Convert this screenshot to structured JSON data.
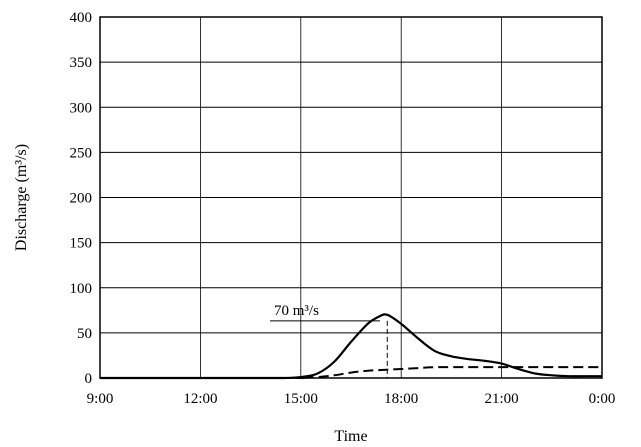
{
  "chart_data": {
    "type": "line",
    "xlabel": "Time",
    "ylabel": "Discharge (m³/s)",
    "x_ticks": [
      "9:00",
      "12:00",
      "15:00",
      "18:00",
      "21:00",
      "0:00"
    ],
    "y_ticks": [
      "0",
      "50",
      "100",
      "150",
      "200",
      "250",
      "300",
      "350",
      "400"
    ],
    "xlim": [
      "9:00",
      "0:00"
    ],
    "ylim": [
      0,
      400
    ],
    "grid": true,
    "series": [
      {
        "style": "solid",
        "x": [
          "9:00",
          "14:00",
          "14:30",
          "15:00",
          "15:30",
          "16:00",
          "16:30",
          "17:00",
          "17:20",
          "17:35",
          "18:00",
          "18:30",
          "19:00",
          "19:30",
          "20:00",
          "20:30",
          "21:00",
          "21:30",
          "22:00",
          "22:30",
          "23:00",
          "23:30",
          "0:00"
        ],
        "y": [
          0,
          0,
          0,
          1,
          5,
          18,
          40,
          60,
          68,
          70,
          60,
          44,
          30,
          24,
          21,
          19,
          16,
          10,
          5,
          3,
          2,
          2,
          2
        ]
      },
      {
        "style": "dashed",
        "x": [
          "9:00",
          "14:30",
          "15:00",
          "15:30",
          "16:00",
          "16:30",
          "17:00",
          "17:30",
          "18:00",
          "18:30",
          "19:00",
          "20:00",
          "21:00",
          "22:00",
          "23:00",
          "0:00"
        ],
        "y": [
          0,
          0,
          0,
          1,
          3,
          6,
          8,
          9,
          10,
          11,
          12,
          12,
          12,
          12,
          12,
          12
        ]
      }
    ],
    "annotations": [
      {
        "text": "70 m³/s",
        "x": "17:35",
        "y": 70
      }
    ]
  }
}
